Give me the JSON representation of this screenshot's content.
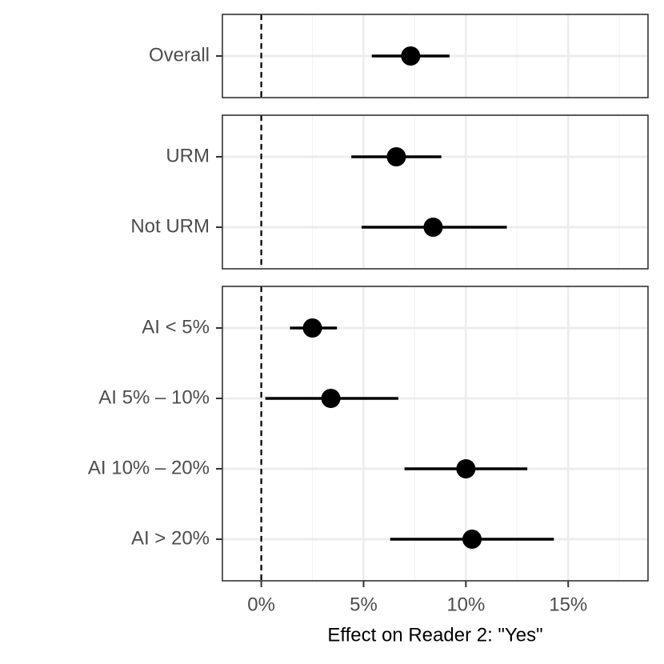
{
  "chart_data": {
    "type": "pointrange",
    "x_label": "Effect on Reader 2: \"Yes\"",
    "xlim": [
      -1.9,
      18.9
    ],
    "xticks": [
      {
        "value": 0,
        "label": "0%"
      },
      {
        "value": 5,
        "label": "5%"
      },
      {
        "value": 10,
        "label": "10%"
      },
      {
        "value": 15,
        "label": "15%"
      }
    ],
    "reference_line": 0,
    "grid": true,
    "color": "#000000",
    "panels": [
      {
        "categories": [
          "Overall"
        ],
        "values": [
          7.3
        ],
        "lower": [
          5.4
        ],
        "upper": [
          9.2
        ]
      },
      {
        "categories": [
          "URM",
          "Not URM"
        ],
        "values": [
          6.6,
          8.4
        ],
        "lower": [
          4.4,
          4.9
        ],
        "upper": [
          8.8,
          12.0
        ]
      },
      {
        "categories": [
          "AI < 5%",
          "AI 5% – 10%",
          "AI 10% – 20%",
          "AI > 20%"
        ],
        "values": [
          2.5,
          3.4,
          10.0,
          10.3
        ],
        "lower": [
          1.4,
          0.2,
          7.0,
          6.3
        ],
        "upper": [
          3.7,
          6.7,
          13.0,
          14.3
        ]
      }
    ]
  }
}
